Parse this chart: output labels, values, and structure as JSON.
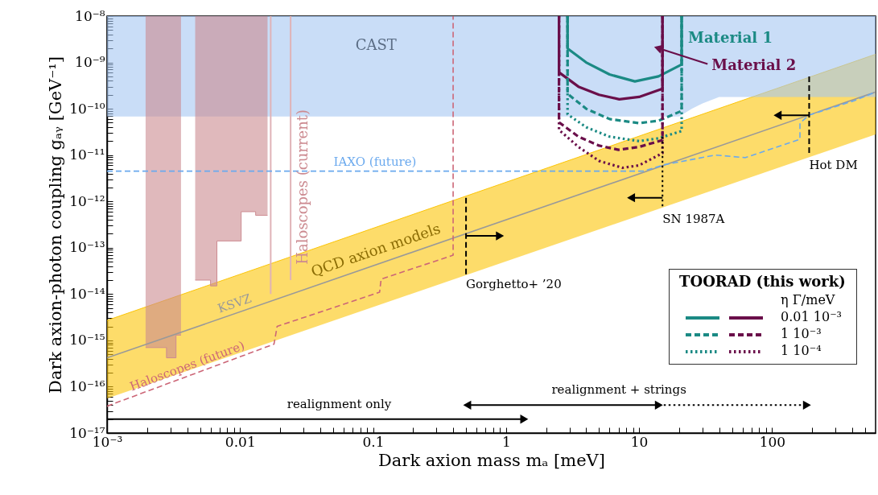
{
  "chart_data": {
    "type": "line",
    "xlabel": "Dark axion mass mₐ [meV]",
    "ylabel": "Dark axion-photon coupling gₐᵧ [GeV⁻¹]",
    "legend_title": "TOORAD (this work)",
    "legend": "bottom right",
    "log": "xy",
    "xlim": [
      0.001,
      600
    ],
    "ylim": [
      1e-17,
      1e-08
    ],
    "xticks": [
      {
        "value": 0.001,
        "label": "10⁻³"
      },
      {
        "value": 0.002,
        "label": null
      },
      {
        "value": 0.003,
        "label": null
      },
      {
        "value": 0.004,
        "label": null
      },
      {
        "value": 0.005,
        "label": null
      },
      {
        "value": 0.006,
        "label": null
      },
      {
        "value": 0.007,
        "label": null
      },
      {
        "value": 0.008,
        "label": null
      },
      {
        "value": 0.009,
        "label": null
      },
      0.01,
      {
        "value": 0.02,
        "label": null
      },
      {
        "value": 0.03,
        "label": null
      },
      {
        "value": 0.04,
        "label": null
      },
      {
        "value": 0.05,
        "label": null
      },
      {
        "value": 0.06,
        "label": null
      },
      {
        "value": 0.07,
        "label": null
      },
      {
        "value": 0.08,
        "label": null
      },
      {
        "value": 0.09,
        "label": null
      },
      0.1,
      {
        "value": 0.2,
        "label": null
      },
      {
        "value": 0.3,
        "label": null
      },
      {
        "value": 0.4,
        "label": null
      },
      {
        "value": 0.5,
        "label": null
      },
      {
        "value": 0.6,
        "label": null
      },
      {
        "value": 0.7,
        "label": null
      },
      {
        "value": 0.8,
        "label": null
      },
      {
        "value": 0.9,
        "label": null
      },
      1,
      {
        "value": 2,
        "label": null
      },
      {
        "value": 3,
        "label": null
      },
      {
        "value": 4,
        "label": null
      },
      {
        "value": 5,
        "label": null
      },
      {
        "value": 6,
        "label": null
      },
      {
        "value": 7,
        "label": null
      },
      {
        "value": 8,
        "label": null
      },
      {
        "value": 9,
        "label": null
      },
      10,
      {
        "value": 20,
        "label": null
      },
      {
        "value": 30,
        "label": null
      },
      {
        "value": 40,
        "label": null
      },
      {
        "value": 50,
        "label": null
      },
      {
        "value": 60,
        "label": null
      },
      {
        "value": 70,
        "label": null
      },
      {
        "value": 80,
        "label": null
      },
      {
        "value": 90,
        "label": null
      },
      100,
      {
        "value": 200,
        "label": null
      },
      {
        "value": 300,
        "label": null
      },
      {
        "value": 400,
        "label": null
      },
      {
        "value": 500,
        "label": null
      }
    ],
    "yticks": [
      {
        "value": 1e-17,
        "label": "10⁻¹⁷"
      },
      {
        "value": 2e-17,
        "label": null
      },
      {
        "value": 3e-17,
        "label": null
      },
      {
        "value": 4e-17,
        "label": null
      },
      {
        "value": 5e-17,
        "label": null
      },
      {
        "value": 6e-17,
        "label": null
      },
      {
        "value": 7e-17,
        "label": null
      },
      {
        "value": 8e-17,
        "label": null
      },
      {
        "value": 9e-17,
        "label": null
      },
      {
        "value": 1e-16,
        "label": "10⁻¹⁶"
      },
      {
        "value": 2e-16,
        "label": null
      },
      {
        "value": 3e-16,
        "label": null
      },
      {
        "value": 4e-16,
        "label": null
      },
      {
        "value": 5e-16,
        "label": null
      },
      {
        "value": 6e-16,
        "label": null
      },
      {
        "value": 7e-16,
        "label": null
      },
      {
        "value": 8e-16,
        "label": null
      },
      {
        "value": 9e-16,
        "label": null
      },
      {
        "value": 1e-15,
        "label": "10⁻¹⁵"
      },
      {
        "value": 2e-15,
        "label": null
      },
      {
        "value": 3e-15,
        "label": null
      },
      {
        "value": 4e-15,
        "label": null
      },
      {
        "value": 5e-15,
        "label": null
      },
      {
        "value": 6e-15,
        "label": null
      },
      {
        "value": 7e-15,
        "label": null
      },
      {
        "value": 8e-15,
        "label": null
      },
      {
        "value": 9e-15,
        "label": null
      },
      {
        "value": 1e-14,
        "label": "10⁻¹⁴"
      },
      {
        "value": 2e-14,
        "label": null
      },
      {
        "value": 3e-14,
        "label": null
      },
      {
        "value": 4e-14,
        "label": null
      },
      {
        "value": 5e-14,
        "label": null
      },
      {
        "value": 6e-14,
        "label": null
      },
      {
        "value": 7e-14,
        "label": null
      },
      {
        "value": 8e-14,
        "label": null
      },
      {
        "value": 9e-14,
        "label": null
      },
      {
        "value": 1e-13,
        "label": "10⁻¹³"
      },
      {
        "value": 2e-13,
        "label": null
      },
      {
        "value": 3e-13,
        "label": null
      },
      {
        "value": 4e-13,
        "label": null
      },
      {
        "value": 5e-13,
        "label": null
      },
      {
        "value": 6e-13,
        "label": null
      },
      {
        "value": 7e-13,
        "label": null
      },
      {
        "value": 8e-13,
        "label": null
      },
      {
        "value": 9e-13,
        "label": null
      },
      {
        "value": 1e-12,
        "label": "10⁻¹²"
      },
      {
        "value": 2e-12,
        "label": null
      },
      {
        "value": 3e-12,
        "label": null
      },
      {
        "value": 4e-12,
        "label": null
      },
      {
        "value": 5e-12,
        "label": null
      },
      {
        "value": 6e-12,
        "label": null
      },
      {
        "value": 7e-12,
        "label": null
      },
      {
        "value": 8e-12,
        "label": null
      },
      {
        "value": 9e-12,
        "label": null
      },
      {
        "value": 1e-11,
        "label": "10⁻¹¹"
      },
      {
        "value": 2e-11,
        "label": null
      },
      {
        "value": 3e-11,
        "label": null
      },
      {
        "value": 4e-11,
        "label": null
      },
      {
        "value": 5e-11,
        "label": null
      },
      {
        "value": 6e-11,
        "label": null
      },
      {
        "value": 7e-11,
        "label": null
      },
      {
        "value": 8e-11,
        "label": null
      },
      {
        "value": 9e-11,
        "label": null
      },
      {
        "value": 1e-10,
        "label": "10⁻¹⁰"
      },
      {
        "value": 2e-10,
        "label": null
      },
      {
        "value": 3e-10,
        "label": null
      },
      {
        "value": 4e-10,
        "label": null
      },
      {
        "value": 5e-10,
        "label": null
      },
      {
        "value": 6e-10,
        "label": null
      },
      {
        "value": 7e-10,
        "label": null
      },
      {
        "value": 8e-10,
        "label": null
      },
      {
        "value": 9e-10,
        "label": null
      },
      {
        "value": 1e-09,
        "label": "10⁻⁹"
      },
      {
        "value": 2e-09,
        "label": null
      },
      {
        "value": 3e-09,
        "label": null
      },
      {
        "value": 4e-09,
        "label": null
      },
      {
        "value": 5e-09,
        "label": null
      },
      {
        "value": 6e-09,
        "label": null
      },
      {
        "value": 7e-09,
        "label": null
      },
      {
        "value": 8e-09,
        "label": null
      },
      {
        "value": 9e-09,
        "label": null
      },
      {
        "value": 1e-08,
        "label": "10⁻⁸"
      }
    ],
    "annotations": [
      "η Γ/meV",
      {
        "text": "Material 1",
        "x": 20.9,
        "y": 3.2e-09
      },
      {
        "text": "Material 2",
        "x": 15,
        "y": 1.9e-09
      },
      {
        "text": "Gorghetto+ ’20",
        "x": 0.5,
        "y": 2.6e-14
      },
      {
        "text": "SN 1987A",
        "x": 15,
        "y": 6.8e-13
      },
      {
        "text": "Hot DM",
        "x": 190,
        "y": 1e-11
      },
      {
        "text": "realignment only",
        "x": 0.0226,
        "y": 2e-17
      },
      {
        "text": "realignment + strings",
        "x": 2.2,
        "y": 4e-17
      }
    ],
    "series": [
      {
        "name": "QCD axion models",
        "color": "#fcc507",
        "x": [
          0.001,
          600
        ],
        "lower": [
          5.6e-17,
          2.8e-11
        ],
        "upper": [
          2.7e-15,
          1.5e-09
        ],
        "values": [
          2.7e-15,
          1.5e-09
        ]
      },
      {
        "name": "CAST",
        "color": "#a5c6f2",
        "x": [
          0.001,
          20,
          25,
          30,
          40,
          600
        ],
        "lower": [
          6.8e-11,
          6.8e-11,
          1e-10,
          1.3e-10,
          1.8e-10,
          1.8e-10
        ],
        "upper": [
          1e-08,
          1e-08,
          1e-08,
          1e-08,
          1e-08,
          1e-08
        ],
        "values": [
          1e-08,
          1e-08,
          1e-08,
          1e-08,
          1e-08,
          1e-08
        ]
      },
      {
        "name": "Haloscopes (current)",
        "color": "#cc8a90",
        "x": [
          0.00195,
          0.0028,
          0.0028,
          0.0033,
          0.0033,
          0.0036,
          0.004,
          0.0046,
          0.006,
          0.006,
          0.0067,
          0.0067,
          0.0102,
          0.0102,
          0.0131,
          0.0131,
          0.0161
        ],
        "lower": [
          7e-16,
          7e-16,
          4.2e-16,
          4.2e-16,
          1.3e-15,
          1.3e-15,
          null,
          2e-14,
          2e-14,
          1.5e-14,
          1.5e-14,
          1.4e-13,
          1.4e-13,
          6e-13,
          6e-13,
          5e-13,
          5e-13
        ],
        "upper": [
          1e-08,
          1e-08,
          1e-08,
          1e-08,
          1e-08,
          1e-08,
          null,
          1e-08,
          1e-08,
          1e-08,
          1e-08,
          1e-08,
          1e-08,
          1e-08,
          1e-08,
          1e-08,
          1e-08
        ],
        "values": [
          7e-16,
          7e-16,
          4.2e-16,
          4.2e-16,
          1.3e-15,
          1.3e-15,
          null,
          2e-14,
          2e-14,
          1.5e-14,
          1.5e-14,
          1.4e-13,
          1.4e-13,
          6e-13,
          6e-13,
          5e-13,
          5e-13
        ]
      },
      {
        "color": "#e0b3b7",
        "x": [
          0.017,
          0.017
        ],
        "values": [
          1e-08,
          1e-14
        ]
      },
      {
        "color": "#e0b3b7",
        "x": [
          0.024,
          0.024
        ],
        "values": [
          1e-08,
          2e-14
        ]
      },
      {
        "name": "KSVZ",
        "color": "#999999",
        "x": [
          0.001,
          600
        ],
        "values": [
          4.2e-16,
          2.3e-10
        ]
      },
      {
        "name": "IAXO (future)",
        "color": "#6aa9ee",
        "line_style": "dashed",
        "x": [
          0.001,
          10.7,
          15.5,
          37.5,
          63,
          162,
          162,
          190,
          417,
          600
        ],
        "values": [
          4.5e-12,
          4.5e-12,
          6.2e-12,
          1e-11,
          8.8e-12,
          2.2e-11,
          4.9e-11,
          7.3e-11,
          1.5e-10,
          2.3e-10
        ]
      },
      {
        "name": "Haloscopes (future)",
        "color": "#cc6677",
        "line_style": "dashed",
        "x": [
          0.001,
          0.018,
          0.019,
          0.112,
          0.115,
          0.4,
          0.4
        ],
        "values": [
          3.8e-17,
          8.3e-16,
          2e-15,
          1.1e-14,
          2.1e-14,
          6.9e-14,
          1e-08
        ]
      },
      {
        "color": "#1b8a84",
        "line_style": "solid",
        "x": [
          2.9,
          2.9,
          4,
          6,
          9.3,
          14,
          20.9,
          20.9
        ],
        "values": [
          1e-08,
          2e-09,
          1e-09,
          5.5e-10,
          3.9e-10,
          5e-10,
          9e-10,
          1e-08
        ]
      },
      {
        "name": "0.01 10⁻³",
        "color": "#6a0f4a",
        "line_style": "solid",
        "x": [
          2.5,
          2.5,
          3.5,
          5,
          7.1,
          10,
          15,
          15
        ],
        "values": [
          1e-08,
          6.1e-10,
          3e-10,
          2e-10,
          1.6e-10,
          1.8e-10,
          2.7e-10,
          1e-08
        ]
      },
      {
        "color": "#1b8a84",
        "line_style": "dashed",
        "x": [
          2.9,
          2.9,
          4,
          6,
          10,
          14,
          20.9,
          20.9
        ],
        "values": [
          1e-08,
          2.1e-10,
          1e-10,
          6e-11,
          4.9e-11,
          5.5e-11,
          9e-11,
          1e-08
        ]
      },
      {
        "name": "1 10⁻³",
        "color": "#6a0f4a",
        "line_style": "dashed",
        "x": [
          2.5,
          2.5,
          3.5,
          5,
          7,
          10,
          15,
          15
        ],
        "values": [
          1e-08,
          5.1e-11,
          2.5e-11,
          1.6e-11,
          1.3e-11,
          1.5e-11,
          2.1e-11,
          1e-08
        ]
      },
      {
        "color": "#1b8a84",
        "line_style": "dotted",
        "x": [
          2.9,
          2.9,
          4,
          6,
          10,
          14,
          20.9,
          20.9
        ],
        "values": [
          1e-08,
          7.6e-11,
          4e-11,
          2.5e-11,
          2e-11,
          2.3e-11,
          3.3e-11,
          1e-08
        ]
      },
      {
        "name": "1 10⁻⁴",
        "color": "#6a0f4a",
        "line_style": "dotted",
        "x": [
          2.5,
          2.5,
          3.5,
          5,
          7.5,
          10,
          15,
          15
        ],
        "values": [
          1e-08,
          3.5e-11,
          1.5e-11,
          7.5e-12,
          5.3e-12,
          6e-12,
          1.1e-11,
          1e-08
        ]
      },
      {
        "color": "#000000",
        "line_style": "dashed",
        "x": [
          0.5,
          0.5
        ],
        "values": [
          1.2e-12,
          2.6e-14
        ]
      },
      {
        "color": "#000000",
        "x": [
          0.5,
          0.9
        ],
        "values": [
          1.8e-13,
          1.8e-13
        ]
      },
      {
        "color": "#000000",
        "line_style": "dotted",
        "x": [
          15,
          15
        ],
        "values": [
          2.5e-11,
          6.8e-13
        ]
      },
      {
        "color": "#000000",
        "x": [
          15,
          8.7
        ],
        "values": [
          1.2e-12,
          1.2e-12
        ]
      },
      {
        "color": "#000000",
        "line_style": "dashed",
        "x": [
          190,
          190
        ],
        "values": [
          5e-10,
          1e-11
        ]
      },
      {
        "color": "#000000",
        "x": [
          190,
          110
        ],
        "values": [
          7.2e-11,
          7.2e-11
        ]
      },
      {
        "color": "#000000",
        "x": [
          0.001,
          1.37
        ],
        "values": [
          2e-17,
          2e-17
        ]
      },
      {
        "color": "#000000",
        "marker": "triangle",
        "x": [
          0.51,
          14.1
        ],
        "values": [
          4e-17,
          4e-17
        ]
      },
      {
        "color": "#000000",
        "line_style": "dotted",
        "x": [
          14.1,
          183
        ],
        "values": [
          4e-17,
          4e-17
        ]
      }
    ]
  }
}
